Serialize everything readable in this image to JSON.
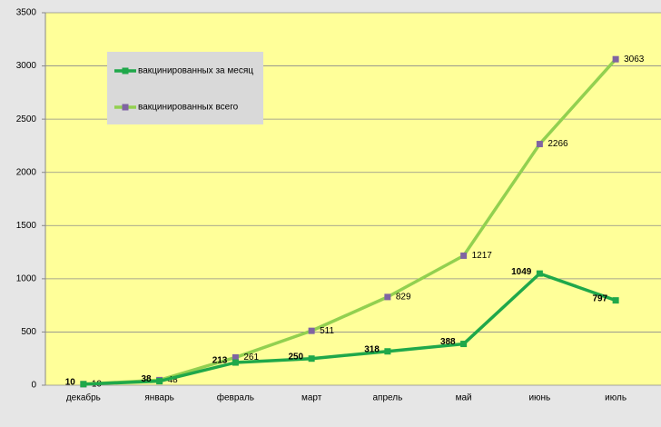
{
  "chart_data": {
    "type": "line",
    "categories": [
      "декабрь",
      "январь",
      "февраль",
      "март",
      "апрель",
      "май",
      "июнь",
      "июль"
    ],
    "series": [
      {
        "name": "вакцинированных за месяц",
        "color": "#1fa84a",
        "marker_color": "#1fa84a",
        "values": [
          10,
          38,
          213,
          250,
          318,
          388,
          1049,
          797
        ]
      },
      {
        "name": "вакцинированных всего",
        "color": "#92d050",
        "marker_color": "#8064a2",
        "values": [
          10,
          48,
          261,
          511,
          829,
          1217,
          2266,
          3063
        ]
      }
    ],
    "ylim": [
      0,
      3500
    ],
    "yticks": [
      0,
      500,
      1000,
      1500,
      2000,
      2500,
      3000,
      3500
    ],
    "grid": true
  }
}
